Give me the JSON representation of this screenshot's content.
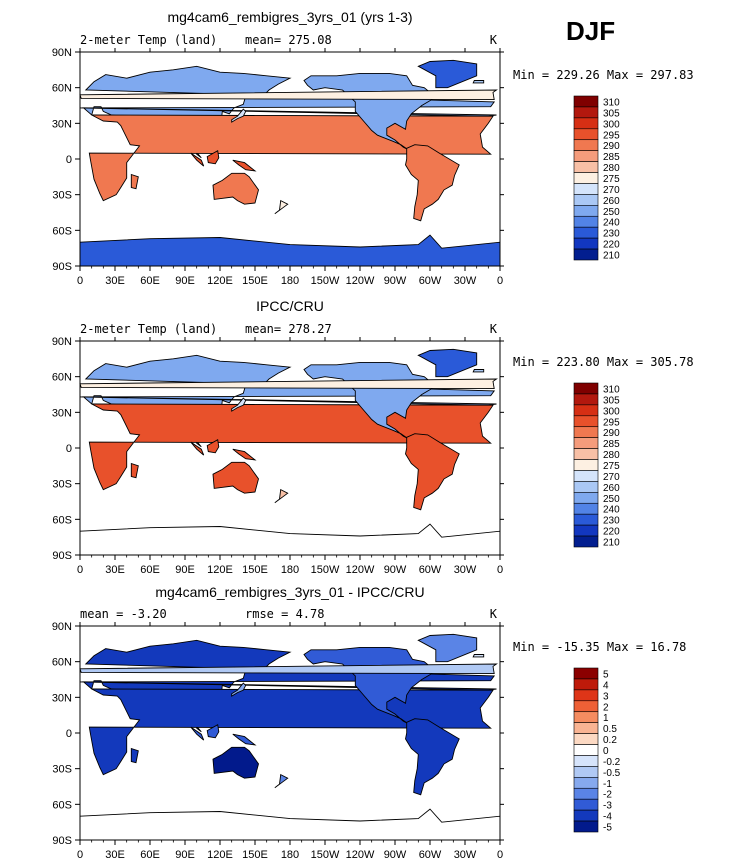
{
  "season_label": "DJF",
  "chart_data": [
    {
      "type": "heatmap",
      "title": "mg4cam6_rembigres_3yrs_01 (yrs 1-3)",
      "left_label": "2-meter Temp (land)",
      "center_label": "mean= 275.08",
      "right_label": "K",
      "stats": "Min = 229.26  Max = 297.83",
      "x_ticks": [
        "0",
        "30E",
        "60E",
        "90E",
        "120E",
        "150E",
        "180",
        "150W",
        "120W",
        "90W",
        "60W",
        "30W",
        "0"
      ],
      "y_ticks": [
        "90N",
        "60N",
        "30N",
        "0",
        "30S",
        "60S",
        "90S"
      ],
      "xlim": [
        0,
        360
      ],
      "ylim": [
        -90,
        90
      ],
      "colorbar_levels": [
        "310",
        "305",
        "300",
        "295",
        "290",
        "285",
        "280",
        "275",
        "270",
        "260",
        "250",
        "240",
        "230",
        "220",
        "210"
      ],
      "antarctica_filled": true
    },
    {
      "type": "heatmap",
      "title": "IPCC/CRU",
      "left_label": "2-meter Temp (land)",
      "center_label": "mean= 278.27",
      "right_label": "K",
      "stats": "Min = 223.80  Max = 305.78",
      "x_ticks": [
        "0",
        "30E",
        "60E",
        "90E",
        "120E",
        "150E",
        "180",
        "150W",
        "120W",
        "90W",
        "60W",
        "30W",
        "0"
      ],
      "y_ticks": [
        "90N",
        "60N",
        "30N",
        "0",
        "30S",
        "60S",
        "90S"
      ],
      "xlim": [
        0,
        360
      ],
      "ylim": [
        -90,
        90
      ],
      "colorbar_levels": [
        "310",
        "305",
        "300",
        "295",
        "290",
        "285",
        "280",
        "275",
        "270",
        "260",
        "250",
        "240",
        "230",
        "220",
        "210"
      ],
      "antarctica_filled": false
    },
    {
      "type": "heatmap",
      "title": "mg4cam6_rembigres_3yrs_01 - IPCC/CRU",
      "left_label": "mean =   -3.20",
      "center_label": "rmse =    4.78",
      "right_label": "K",
      "stats": "Min = -15.35  Max =  16.78",
      "x_ticks": [
        "0",
        "30E",
        "60E",
        "90E",
        "120E",
        "150E",
        "180",
        "150W",
        "120W",
        "90W",
        "60W",
        "30W",
        "0"
      ],
      "y_ticks": [
        "90N",
        "60N",
        "30N",
        "0",
        "30S",
        "60S",
        "90S"
      ],
      "xlim": [
        0,
        360
      ],
      "ylim": [
        -90,
        90
      ],
      "colorbar_levels": [
        "5",
        "4",
        "3",
        "2",
        "1",
        "0.5",
        "0.2",
        "0",
        "-0.2",
        "-0.5",
        "-1",
        "-2",
        "-3",
        "-4",
        "-5"
      ],
      "antarctica_filled": false
    }
  ],
  "palette": {
    "temp": [
      "#7f0000",
      "#b2180e",
      "#d62f14",
      "#e8512b",
      "#f07850",
      "#f59c7c",
      "#f8c0a6",
      "#fdf0e2",
      "#d4e4fb",
      "#aac8f5",
      "#7fa9ef",
      "#5283e6",
      "#2a5ad8",
      "#1237c0",
      "#021e8f"
    ],
    "diff": [
      "#8b0000",
      "#be1a0a",
      "#de3518",
      "#ee6036",
      "#f58c60",
      "#f9b493",
      "#fcd9c3",
      "#ffffff",
      "#d6e4fb",
      "#b0c9f4",
      "#86a9ee",
      "#5a84e6",
      "#315bd6",
      "#1339bc",
      "#021a8c"
    ]
  }
}
